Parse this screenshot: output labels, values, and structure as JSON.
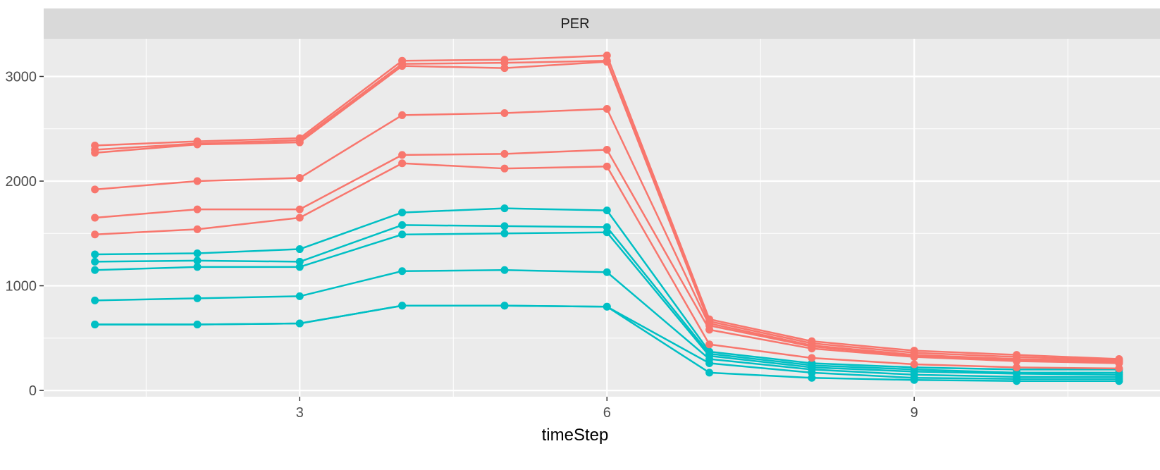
{
  "chart_data": {
    "type": "line",
    "facet_label": "PER",
    "xlabel": "timeStep",
    "ylabel": "",
    "xlim": [
      0.5,
      11.4
    ],
    "ylim": [
      -60,
      3360
    ],
    "x_ticks": [
      3,
      6,
      9
    ],
    "x_tick_labels": [
      "3",
      "6",
      "9"
    ],
    "x_minor_ticks": [
      1.5,
      4.5,
      7.5,
      10.5
    ],
    "y_ticks": [
      0,
      1000,
      2000,
      3000
    ],
    "y_tick_labels": [
      "0",
      "1000",
      "2000",
      "3000"
    ],
    "y_minor_ticks": [
      500,
      1500,
      2500
    ],
    "grid": true,
    "legend": "none",
    "colors": {
      "group_red": "#F8766D",
      "group_teal": "#00BFC4",
      "panel": "#EBEBEB",
      "strip": "#D9D9D9",
      "grid": "#FFFFFF"
    },
    "x": [
      1,
      2,
      3,
      4,
      5,
      6,
      7,
      8,
      9,
      10,
      11
    ],
    "series": [
      {
        "group": "red",
        "values": [
          2340,
          2380,
          2410,
          3150,
          3160,
          3200,
          680,
          470,
          380,
          340,
          300
        ]
      },
      {
        "group": "red",
        "values": [
          2300,
          2360,
          2390,
          3120,
          3130,
          3150,
          660,
          450,
          360,
          320,
          290
        ]
      },
      {
        "group": "red",
        "values": [
          2270,
          2350,
          2370,
          3100,
          3080,
          3140,
          640,
          430,
          340,
          300,
          280
        ]
      },
      {
        "group": "red",
        "values": [
          1920,
          2000,
          2030,
          2630,
          2650,
          2690,
          620,
          420,
          330,
          290,
          270
        ]
      },
      {
        "group": "red",
        "values": [
          1650,
          1730,
          1730,
          2250,
          2260,
          2300,
          580,
          400,
          320,
          280,
          260
        ]
      },
      {
        "group": "red",
        "values": [
          1490,
          1540,
          1650,
          2170,
          2120,
          2140,
          440,
          310,
          250,
          220,
          210
        ]
      },
      {
        "group": "teal",
        "values": [
          1300,
          1310,
          1350,
          1700,
          1740,
          1720,
          370,
          260,
          220,
          200,
          200
        ]
      },
      {
        "group": "teal",
        "values": [
          1230,
          1240,
          1230,
          1580,
          1570,
          1560,
          350,
          240,
          200,
          170,
          170
        ]
      },
      {
        "group": "teal",
        "values": [
          1150,
          1180,
          1180,
          1490,
          1500,
          1510,
          330,
          220,
          180,
          160,
          150
        ]
      },
      {
        "group": "teal",
        "values": [
          860,
          880,
          900,
          1140,
          1150,
          1130,
          300,
          200,
          150,
          130,
          130
        ]
      },
      {
        "group": "teal",
        "values": [
          630,
          630,
          640,
          810,
          810,
          800,
          260,
          170,
          120,
          110,
          110
        ]
      },
      {
        "group": "teal",
        "values": [
          630,
          630,
          640,
          810,
          810,
          800,
          170,
          120,
          100,
          90,
          90
        ]
      }
    ]
  }
}
